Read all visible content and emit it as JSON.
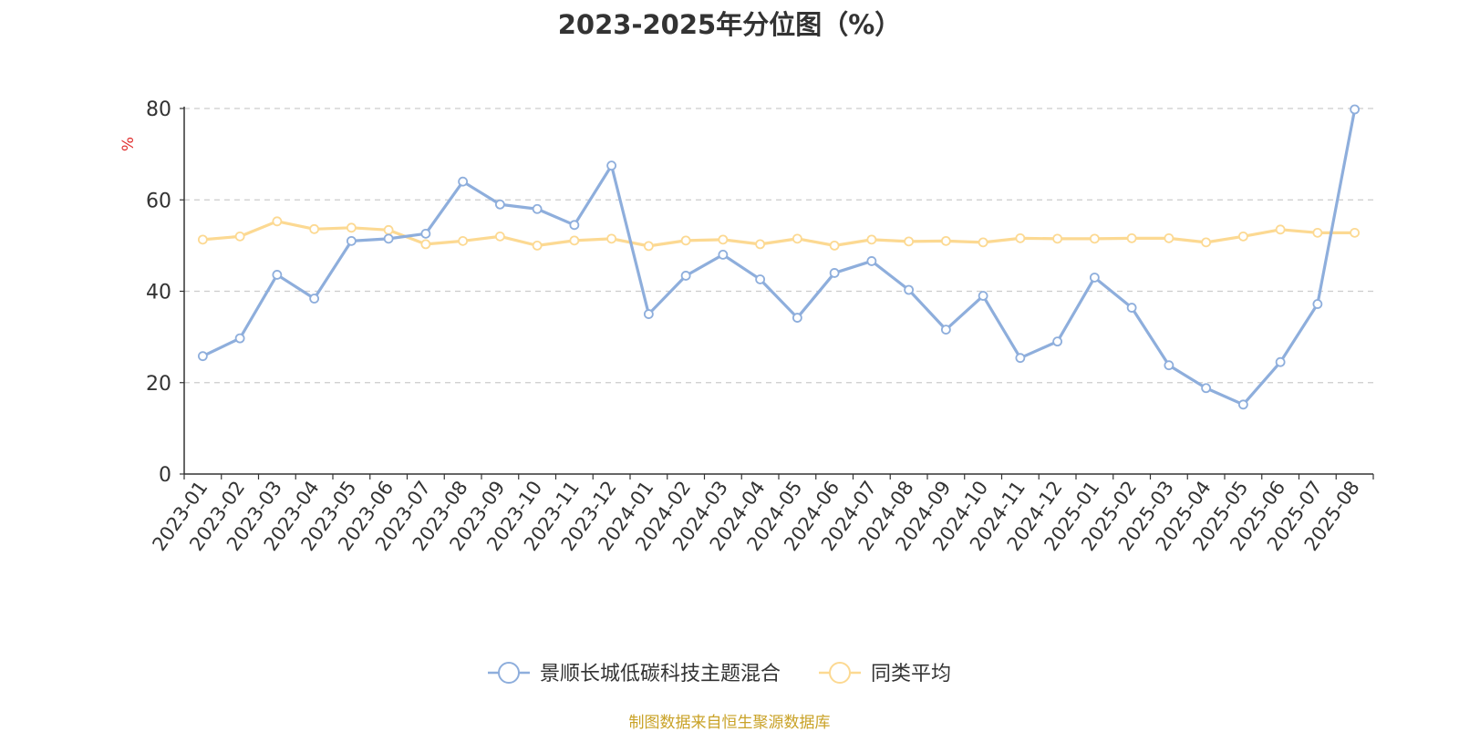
{
  "chart_data": {
    "type": "line",
    "title": "2023-2025年分位图（%）",
    "ylabel": "%",
    "xlabel": "",
    "ylim": [
      0,
      80
    ],
    "yticks": [
      0,
      20,
      40,
      60,
      80
    ],
    "grid": true,
    "legend_position": "bottom",
    "x": [
      "2023-01",
      "2023-02",
      "2023-03",
      "2023-04",
      "2023-05",
      "2023-06",
      "2023-07",
      "2023-08",
      "2023-09",
      "2023-10",
      "2023-11",
      "2023-12",
      "2024-01",
      "2024-02",
      "2024-03",
      "2024-04",
      "2024-05",
      "2024-06",
      "2024-07",
      "2024-08",
      "2024-09",
      "2024-10",
      "2024-11",
      "2024-12",
      "2025-01",
      "2025-02",
      "2025-03",
      "2025-04",
      "2025-05",
      "2025-06",
      "2025-07",
      "2025-08"
    ],
    "series": [
      {
        "name": "景顺长城低碳科技主题混合",
        "color": "#8eaedc",
        "values": [
          25.8,
          29.7,
          43.6,
          38.4,
          51.0,
          51.5,
          52.6,
          64.0,
          59.0,
          58.0,
          54.5,
          67.5,
          35.0,
          43.4,
          48.0,
          42.6,
          34.2,
          44.0,
          46.6,
          40.3,
          31.6,
          39.0,
          25.4,
          29.0,
          43.0,
          36.4,
          23.8,
          18.8,
          15.2,
          24.5,
          37.2,
          79.8
        ]
      },
      {
        "name": "同类平均",
        "color": "#fcd992",
        "values": [
          51.3,
          52.0,
          55.3,
          53.6,
          53.9,
          53.4,
          50.3,
          51.0,
          52.0,
          50.0,
          51.1,
          51.5,
          49.9,
          51.1,
          51.3,
          50.3,
          51.5,
          50.0,
          51.3,
          50.9,
          51.0,
          50.7,
          51.6,
          51.5,
          51.5,
          51.6,
          51.6,
          50.7,
          52.0,
          53.5,
          52.8,
          52.8
        ]
      }
    ]
  },
  "source_note": "制图数据来自恒生聚源数据库"
}
